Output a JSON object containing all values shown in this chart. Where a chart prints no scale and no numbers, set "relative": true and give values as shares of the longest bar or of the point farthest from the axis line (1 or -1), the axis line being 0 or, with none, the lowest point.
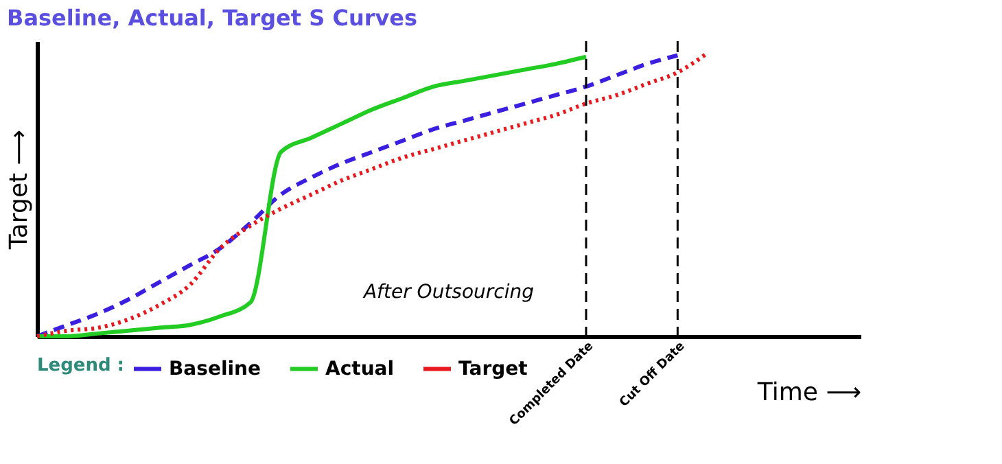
{
  "chart_data": {
    "type": "line",
    "title": "Baseline, Actual, Target S Curves",
    "xlabel": "Time ⟶",
    "ylabel": "Target ⟶",
    "legend_title": "Legend :",
    "legend": "bottom",
    "relative": true,
    "categories": [
      null,
      null,
      null,
      null,
      null,
      null,
      null,
      null,
      null,
      null,
      null,
      null,
      null,
      null,
      null,
      null,
      null,
      null,
      "Completed Date",
      null,
      null,
      "Cut Off Date",
      null,
      null,
      null,
      null,
      null,
      null
    ],
    "series": [
      {
        "name": "Baseline",
        "color": "#3a1fe0",
        "line_style": "dashed",
        "values": [
          0,
          0.04,
          0.08,
          0.13,
          0.19,
          0.25,
          0.31,
          0.4,
          0.5,
          0.56,
          0.61,
          0.65,
          0.69,
          0.73,
          0.76,
          0.79,
          0.82,
          0.85,
          0.88,
          0.92,
          0.96,
          0.99,
          null,
          null,
          null,
          null,
          null,
          null
        ]
      },
      {
        "name": "Actual",
        "color": "#22cc22",
        "line_style": "solid",
        "values": [
          0,
          0,
          0.01,
          0.02,
          0.03,
          0.04,
          0.07,
          0.12,
          0.65,
          0.7,
          0.75,
          0.8,
          0.84,
          0.88,
          0.9,
          0.92,
          0.94,
          0.96,
          0.985,
          null,
          null,
          null,
          null,
          null,
          null,
          null,
          null,
          null
        ]
      },
      {
        "name": "Target",
        "color": "#e8191e",
        "line_style": "dotted",
        "values": [
          0,
          0.02,
          0.03,
          0.06,
          0.11,
          0.18,
          0.31,
          0.39,
          0.45,
          0.5,
          0.55,
          0.59,
          0.63,
          0.66,
          0.69,
          0.72,
          0.75,
          0.78,
          0.82,
          0.85,
          0.89,
          0.93,
          1.0,
          null,
          null,
          null,
          null,
          null
        ]
      }
    ],
    "ref_lines": [
      {
        "axis": "x",
        "value": "Completed Date",
        "color": "#000000",
        "line_style": "dashed"
      },
      {
        "axis": "x",
        "value": "Cut Off Date",
        "color": "#000000",
        "line_style": "dashed"
      }
    ],
    "annotations": [
      "After Outsourcing"
    ]
  }
}
